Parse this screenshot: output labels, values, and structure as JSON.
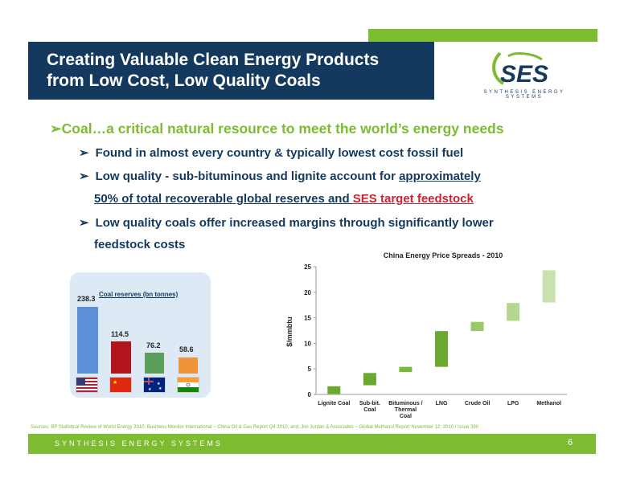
{
  "slide": {
    "title_line1": "Creating Valuable Clean Energy Products",
    "title_line2": "from Low Cost, Low Quality Coals",
    "logo_text": "SES",
    "logo_tagline": "SYNTHESIS ENERGY SYSTEMS",
    "colors": {
      "navy": "#133a5e",
      "green": "#7dbb31",
      "red": "#d1202e"
    }
  },
  "bullets": {
    "main": "Coal…a critical natural resource to meet the world’s energy needs",
    "sub1": "Found in almost every country & typically lowest cost fossil fuel",
    "sub2_a": "Low quality - sub-bituminous and lignite account for ",
    "sub2_b": "approximately",
    "sub2_c": "50% of total recoverable global reserves and ",
    "sub2_d": "SES target feedstock",
    "sub3_a": "Low quality coals offer increased margins through significantly lower",
    "sub3_b": "feedstock costs"
  },
  "reserves": {
    "title": "Coal reserves (bn tonnes)",
    "items": [
      {
        "label": "238.3",
        "value": 238.3,
        "color": "#5b8fd6",
        "flag": "usa-flag-icon"
      },
      {
        "label": "114.5",
        "value": 114.5,
        "color": "#b3131a",
        "flag": "china-flag-icon"
      },
      {
        "label": "76.2",
        "value": 76.2,
        "color": "#5aa05a",
        "flag": "australia-flag-icon"
      },
      {
        "label": "58.6",
        "value": 58.6,
        "color": "#f0923a",
        "flag": "india-flag-icon"
      }
    ]
  },
  "chart_data": {
    "type": "bar",
    "title": "China Energy Price Spreads - 2010",
    "ylabel": "$/mmbtu",
    "xlabel": "",
    "ylim": [
      0,
      25
    ],
    "yticks": [
      "0",
      "5",
      "10",
      "15",
      "20",
      "25"
    ],
    "categories": [
      "Lignite Coal",
      "Sub-bit. Coal",
      "Bituminous / Thermal Coal",
      "LNG",
      "Crude Oil",
      "LPG",
      "Methanol"
    ],
    "ranges": [
      [
        0.1,
        1.6
      ],
      [
        1.8,
        4.2
      ],
      [
        4.4,
        5.4
      ],
      [
        5.4,
        12.4
      ],
      [
        12.4,
        14.2
      ],
      [
        14.4,
        17.9
      ],
      [
        18.0,
        24.3
      ]
    ],
    "colors": [
      "#6ba82e",
      "#6ba82e",
      "#7ab83a",
      "#6ba82e",
      "#9cc86a",
      "#b7d68f",
      "#c9e1ad"
    ]
  },
  "footer": {
    "sources": "Sources: BP Statistical Review of World Energy 2010; Business Monitor International – China Oil & Gas Report Q4 2010; and, Jim Jordan & Associates – Global Methanol Report November 12, 2010 / Issue 390",
    "company": "SYNTHESIS ENERGY SYSTEMS",
    "page": "6"
  }
}
